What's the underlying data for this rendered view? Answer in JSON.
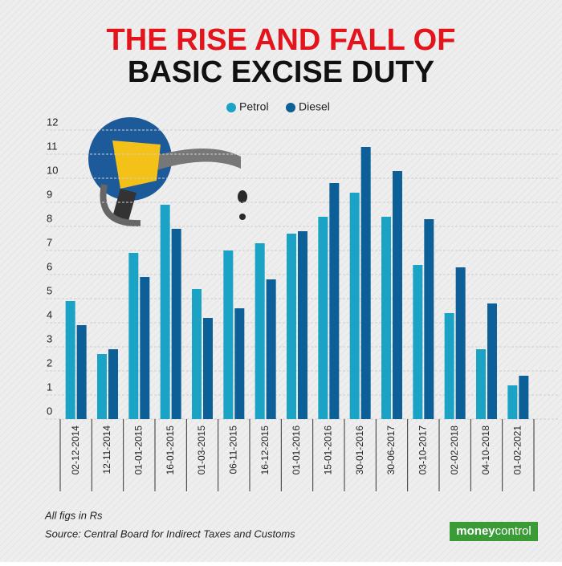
{
  "chart_data": {
    "type": "bar",
    "title": [
      "THE RISE AND FALL OF",
      "BASIC EXCISE DUTY"
    ],
    "categories": [
      "02-12-2014",
      "12-11-2014",
      "01-01-2015",
      "16-01-2015",
      "01-03-2015",
      "06-11-2015",
      "16-12-2015",
      "01-01-2016",
      "15-01-2016",
      "30-01-2016",
      "30-06-2017",
      "03-10-2017",
      "02-02-2018",
      "04-10-2018",
      "01-02-2021"
    ],
    "series": [
      {
        "name": "Petrol",
        "color": "#1ba3c6",
        "values": [
          4.9,
          2.7,
          6.9,
          8.9,
          5.4,
          7.0,
          7.3,
          7.7,
          8.4,
          9.4,
          8.4,
          6.4,
          4.4,
          2.9,
          1.4
        ]
      },
      {
        "name": "Diesel",
        "color": "#0c5f97",
        "values": [
          3.9,
          2.9,
          5.9,
          7.9,
          4.2,
          4.6,
          5.8,
          7.8,
          9.8,
          11.3,
          10.3,
          8.3,
          6.3,
          4.8,
          1.8
        ]
      }
    ],
    "ylim": [
      0,
      12
    ],
    "yticks": [
      0,
      1,
      2,
      3,
      4,
      5,
      6,
      7,
      8,
      9,
      10,
      11,
      12
    ],
    "grid": true,
    "notes": [
      "All figs in Rs",
      "Source: Central Board for Indirect Taxes and Customs"
    ],
    "brand": [
      "money",
      "control"
    ]
  }
}
